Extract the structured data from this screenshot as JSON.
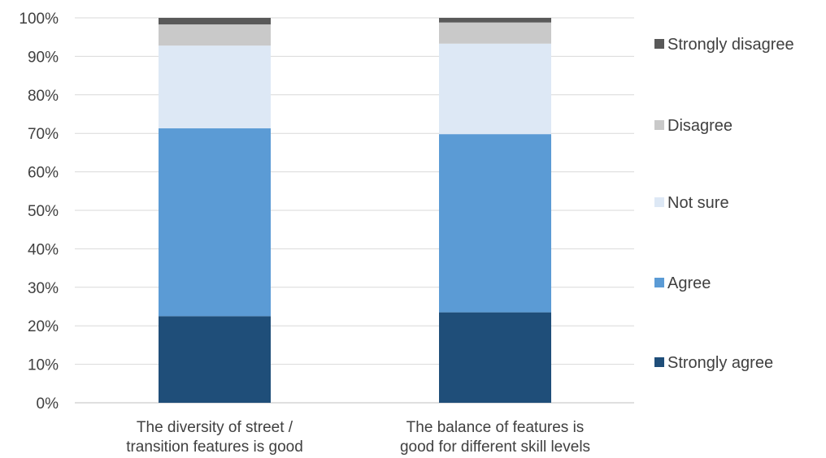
{
  "chart_data": {
    "type": "bar",
    "stacked": true,
    "percent": true,
    "categories": [
      [
        "The diversity of street /",
        "transition features is good"
      ],
      [
        "The balance of features is",
        "good for different skill levels"
      ]
    ],
    "series": [
      {
        "name": "Strongly agree",
        "color": "#1f4e79",
        "values": [
          22.5,
          23.5
        ]
      },
      {
        "name": "Agree",
        "color": "#5b9bd5",
        "values": [
          48.8,
          46.3
        ]
      },
      {
        "name": "Not sure",
        "color": "#dde8f5",
        "values": [
          21.5,
          23.5
        ]
      },
      {
        "name": "Disagree",
        "color": "#c9c9c9",
        "values": [
          5.5,
          5.5
        ]
      },
      {
        "name": "Strongly disagree",
        "color": "#595959",
        "values": [
          1.7,
          1.2
        ]
      }
    ],
    "legend_order": [
      "Strongly disagree",
      "Disagree",
      "Not sure",
      "Agree",
      "Strongly agree"
    ],
    "ylim": [
      0,
      100
    ],
    "yticks": [
      "0%",
      "10%",
      "20%",
      "30%",
      "40%",
      "50%",
      "60%",
      "70%",
      "80%",
      "90%",
      "100%"
    ],
    "grid": true,
    "legend_position": "right"
  }
}
